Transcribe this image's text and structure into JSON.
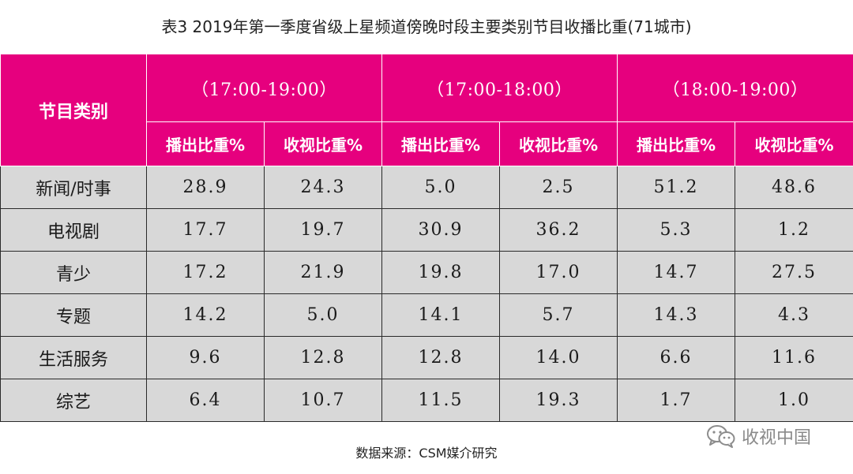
{
  "title": "表3 2019年第一季度省级上星频道傍晚时段主要类别节目收播比重(71城市)",
  "table": {
    "corner_label": "节目类别",
    "groups": [
      "（17:00-19:00）",
      "（17:00-18:00）",
      "（18:00-19:00）"
    ],
    "sub_headers": [
      "播出比重%",
      "收视比重%",
      "播出比重%",
      "收视比重%",
      "播出比重%",
      "收视比重%"
    ],
    "rows": [
      {
        "category": "新闻/时事",
        "values": [
          "28.9",
          "24.3",
          "5.0",
          "2.5",
          "51.2",
          "48.6"
        ]
      },
      {
        "category": "电视剧",
        "values": [
          "17.7",
          "19.7",
          "30.9",
          "36.2",
          "5.3",
          "1.2"
        ]
      },
      {
        "category": "青少",
        "values": [
          "17.2",
          "21.9",
          "19.8",
          "17.0",
          "14.7",
          "27.5"
        ]
      },
      {
        "category": "专题",
        "values": [
          "14.2",
          "5.0",
          "14.1",
          "5.7",
          "14.3",
          "4.3"
        ]
      },
      {
        "category": "生活服务",
        "values": [
          "9.6",
          "12.8",
          "12.8",
          "14.0",
          "6.6",
          "11.6"
        ]
      },
      {
        "category": "综艺",
        "values": [
          "6.4",
          "10.7",
          "11.5",
          "19.3",
          "1.7",
          "1.0"
        ]
      }
    ]
  },
  "source": "数据来源：CSM媒介研究",
  "watermark": {
    "text": "收视中国",
    "icon": "wechat-icon"
  },
  "colors": {
    "header_bg": "#e6007e",
    "cell_bg": "#d8d8d8"
  }
}
